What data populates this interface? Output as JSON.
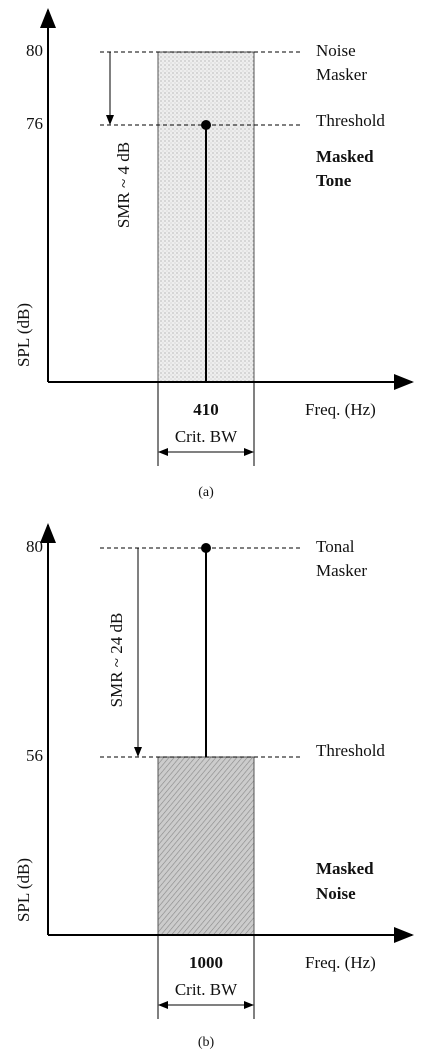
{
  "panels": [
    {
      "y_labels": [
        "80",
        "76"
      ],
      "y_axis_label": "SPL (dB)",
      "x_axis_label": "Freq. (Hz)",
      "center_label": "410",
      "band_label": "Crit. BW",
      "smr_label": "SMR ~ 4 dB",
      "top_label": [
        "Noise",
        "Masker"
      ],
      "threshold_label": "Threshold",
      "bottom_label": [
        "Masked",
        "Tone"
      ],
      "caption": "(a)"
    },
    {
      "y_labels": [
        "80",
        "56"
      ],
      "y_axis_label": "SPL (dB)",
      "x_axis_label": "Freq. (Hz)",
      "center_label": "1000",
      "band_label": "Crit. BW",
      "smr_label": "SMR ~ 24 dB",
      "top_label": [
        "Tonal",
        "Masker"
      ],
      "threshold_label": "Threshold",
      "bottom_label": [
        "Masked",
        "Noise"
      ],
      "caption": "(b)"
    }
  ]
}
